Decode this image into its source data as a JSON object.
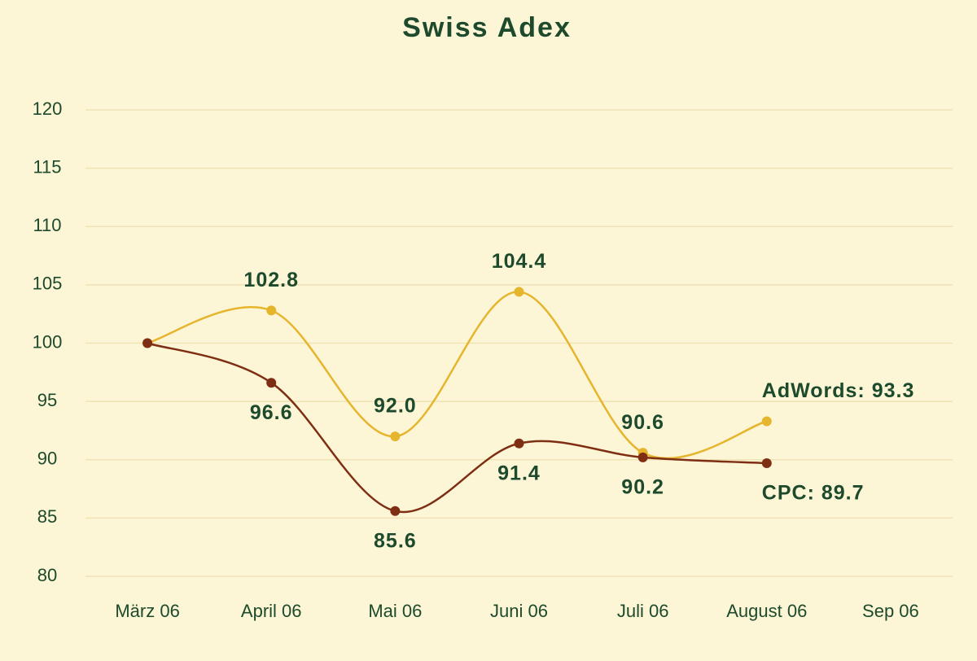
{
  "chart_data": {
    "type": "line",
    "title": "Swiss Adex",
    "categories": [
      "März 06",
      "April 06",
      "Mai 06",
      "Juni 06",
      "Juli 06",
      "August 06",
      "Sep 06"
    ],
    "series": [
      {
        "color": "#e6b52e",
        "values": [
          100,
          102.8,
          92.0,
          104.4,
          90.6,
          93.3,
          null
        ],
        "value_labels": [
          null,
          "102.8",
          "92.0",
          "104.4",
          "90.6",
          "AdWords: 93.3",
          null
        ]
      },
      {
        "color": "#7e2e12",
        "values": [
          100,
          96.6,
          85.6,
          91.4,
          90.2,
          89.7,
          null
        ],
        "value_labels": [
          null,
          "96.6",
          "85.6",
          "91.4",
          "90.2",
          "CPC: 89.7",
          null
        ]
      }
    ],
    "ylim": [
      80,
      120
    ],
    "yticks": [
      80,
      85,
      90,
      95,
      100,
      105,
      110,
      115,
      120
    ],
    "grid": true
  }
}
